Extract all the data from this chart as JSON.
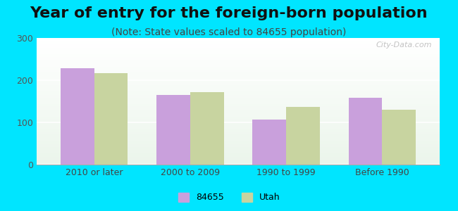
{
  "title": "Year of entry for the foreign-born population",
  "subtitle": "(Note: State values scaled to 84655 population)",
  "categories": [
    "2010 or later",
    "2000 to 2009",
    "1990 to 1999",
    "Before 1990"
  ],
  "series_84655": [
    228,
    165,
    107,
    158
  ],
  "series_utah": [
    217,
    172,
    137,
    130
  ],
  "color_84655": "#c9a0dc",
  "color_utah": "#c8d4a0",
  "background_outer": "#00e5ff",
  "background_inner_top": "#e8f5e9",
  "background_inner_bottom": "#f0f8f0",
  "ylim": [
    0,
    300
  ],
  "yticks": [
    0,
    100,
    200,
    300
  ],
  "legend_labels": [
    "84655",
    "Utah"
  ],
  "watermark": "City-Data.com",
  "title_fontsize": 16,
  "subtitle_fontsize": 10
}
